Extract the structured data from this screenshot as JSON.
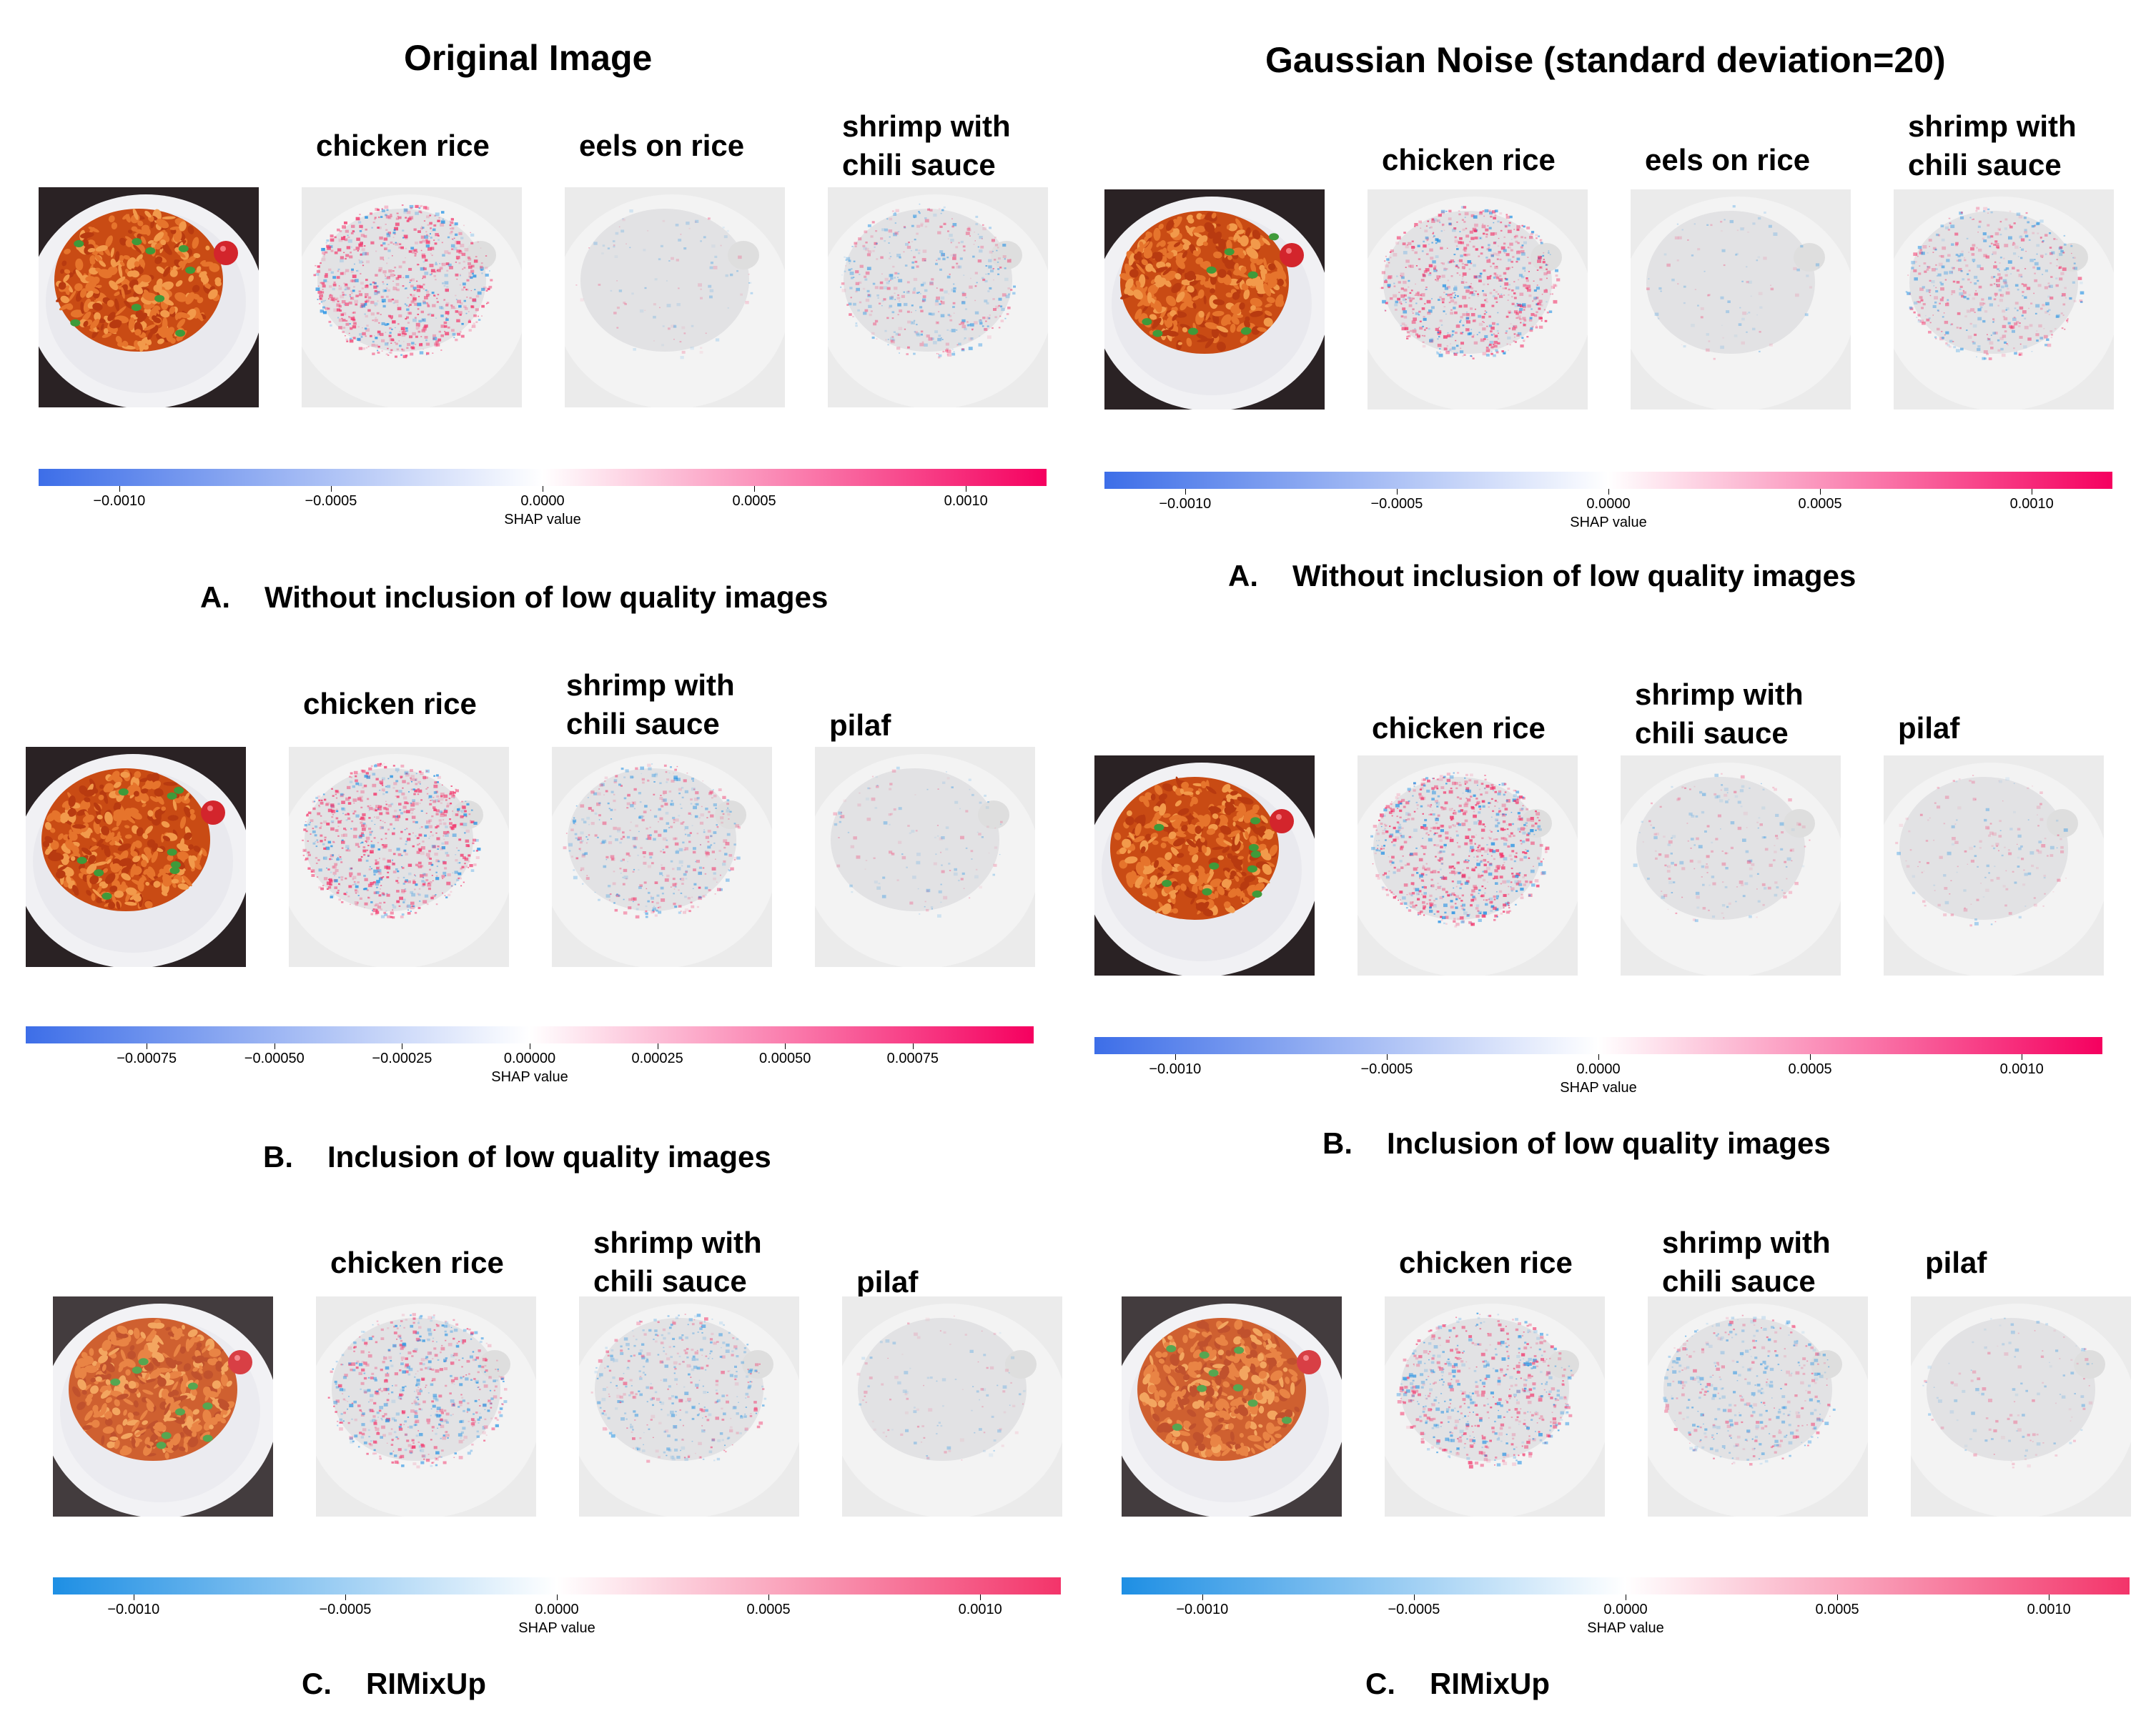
{
  "colors": {
    "negative": "#3d6ee8",
    "negative_light": "#1e8fe4",
    "positive": "#f5005f",
    "positive_light": "#f3346a",
    "food_dark": "#c94b14",
    "food_orange": "#e6742c",
    "plate": "#f1f1f4",
    "background_dark": "#2a2224"
  },
  "column_titles": {
    "left": "Original Image",
    "right": "Gaussian Noise (standard deviation=20)"
  },
  "panels": {
    "left_A": {
      "images": [
        {
          "label": "chicken rice",
          "intensity": 0.85,
          "neg_ratio": 0.25
        },
        {
          "label": "eels on rice",
          "intensity": 0.05,
          "neg_ratio": 0.5
        },
        {
          "label": "shrimp with\nchili sauce",
          "intensity": 0.45,
          "neg_ratio": 0.5
        }
      ],
      "colorbar": {
        "ticks": [
          "−0.0010",
          "−0.0005",
          "0.0000",
          "0.0005",
          "0.0010"
        ],
        "label": "SHAP value"
      },
      "caption": {
        "letter": "A.",
        "text": "Without inclusion of low quality images"
      }
    },
    "right_A": {
      "images": [
        {
          "label": "chicken rice",
          "intensity": 0.8,
          "neg_ratio": 0.25
        },
        {
          "label": "eels on rice",
          "intensity": 0.04,
          "neg_ratio": 0.5
        },
        {
          "label": "shrimp with\nchili sauce",
          "intensity": 0.5,
          "neg_ratio": 0.45
        }
      ],
      "colorbar": {
        "ticks": [
          "−0.0010",
          "−0.0005",
          "0.0000",
          "0.0005",
          "0.0010"
        ],
        "label": "SHAP value"
      },
      "caption": {
        "letter": "A.",
        "text": "Without inclusion of low quality images"
      }
    },
    "left_B": {
      "images": [
        {
          "label": "chicken rice",
          "intensity": 0.85,
          "neg_ratio": 0.3
        },
        {
          "label": "shrimp with\nchili sauce",
          "intensity": 0.45,
          "neg_ratio": 0.45
        },
        {
          "label": "pilaf",
          "intensity": 0.08,
          "neg_ratio": 0.5
        }
      ],
      "colorbar": {
        "ticks": [
          "−0.00075",
          "−0.00050",
          "−0.00025",
          "0.00000",
          "0.00025",
          "0.00050",
          "0.00075"
        ],
        "label": "SHAP value"
      },
      "caption": {
        "letter": "B.",
        "text": "Inclusion of low quality images"
      }
    },
    "right_B": {
      "images": [
        {
          "label": "chicken rice",
          "intensity": 0.85,
          "neg_ratio": 0.3
        },
        {
          "label": "shrimp with\nchili sauce",
          "intensity": 0.15,
          "neg_ratio": 0.4
        },
        {
          "label": "pilaf",
          "intensity": 0.12,
          "neg_ratio": 0.4
        }
      ],
      "colorbar": {
        "ticks": [
          "−0.0010",
          "−0.0005",
          "0.0000",
          "0.0005",
          "0.0010"
        ],
        "label": "SHAP value"
      },
      "caption": {
        "letter": "B.",
        "text": "Inclusion of low quality images"
      }
    },
    "left_C": {
      "images": [
        {
          "label": "chicken rice",
          "intensity": 0.65,
          "neg_ratio": 0.45
        },
        {
          "label": "shrimp with\nchili sauce",
          "intensity": 0.4,
          "neg_ratio": 0.6
        },
        {
          "label": "pilaf",
          "intensity": 0.06,
          "neg_ratio": 0.5
        }
      ],
      "colorbar": {
        "ticks": [
          "−0.0010",
          "−0.0005",
          "0.0000",
          "0.0005",
          "0.0010"
        ],
        "label": "SHAP value"
      },
      "caption": {
        "letter": "C.",
        "text": "RIMixUp"
      }
    },
    "right_C": {
      "images": [
        {
          "label": "chicken rice",
          "intensity": 0.65,
          "neg_ratio": 0.45
        },
        {
          "label": "shrimp with\nchili sauce",
          "intensity": 0.4,
          "neg_ratio": 0.6
        },
        {
          "label": "pilaf",
          "intensity": 0.08,
          "neg_ratio": 0.5
        }
      ],
      "colorbar": {
        "ticks": [
          "−0.0010",
          "−0.0005",
          "0.0000",
          "0.0005",
          "0.0010"
        ],
        "label": "SHAP value"
      },
      "caption": {
        "letter": "C.",
        "text": "RIMixUp"
      }
    }
  }
}
